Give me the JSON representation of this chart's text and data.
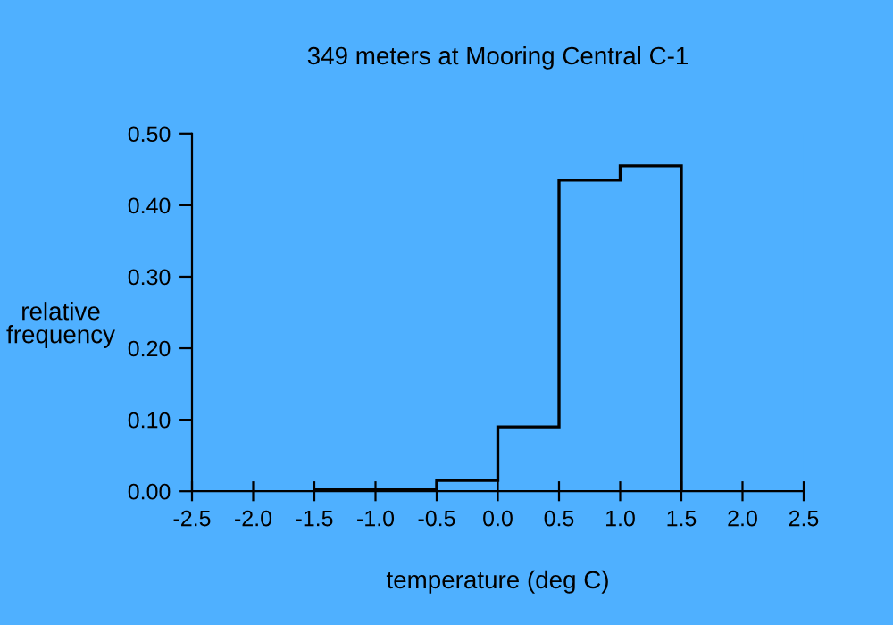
{
  "chart_data": {
    "type": "histogram",
    "title": "349 meters at Mooring Central C-1",
    "xlabel": "temperature (deg C)",
    "ylabel": "relative\nfrequency",
    "bins": [
      -1.5,
      -1.0,
      -0.5,
      0.0,
      0.5,
      1.0,
      1.5
    ],
    "values": [
      0.002,
      0.002,
      0.015,
      0.09,
      0.435,
      0.455
    ],
    "color": "#000000",
    "xlim": [
      -2.5,
      2.5
    ],
    "xticks": [
      {
        "value": -2.5,
        "label": "-2.5"
      },
      {
        "value": -2.0,
        "label": "-2.0"
      },
      {
        "value": -1.5,
        "label": "-1.5"
      },
      {
        "value": -1.0,
        "label": "-1.0"
      },
      {
        "value": -0.5,
        "label": "-0.5"
      },
      {
        "value": 0.0,
        "label": "0.0"
      },
      {
        "value": 0.5,
        "label": "0.5"
      },
      {
        "value": 1.0,
        "label": "1.0"
      },
      {
        "value": 1.5,
        "label": "1.5"
      },
      {
        "value": 2.0,
        "label": "2.0"
      },
      {
        "value": 2.5,
        "label": "2.5"
      }
    ],
    "ylim": [
      0,
      0.5
    ],
    "yticks": [
      {
        "value": 0,
        "label": "0.00"
      },
      {
        "value": 0.1,
        "label": "0.10"
      },
      {
        "value": 0.2,
        "label": "0.20"
      },
      {
        "value": 0.3,
        "label": "0.30"
      },
      {
        "value": 0.4,
        "label": "0.40"
      },
      {
        "value": 0.5,
        "label": "0.50"
      }
    ],
    "grid": false
  }
}
